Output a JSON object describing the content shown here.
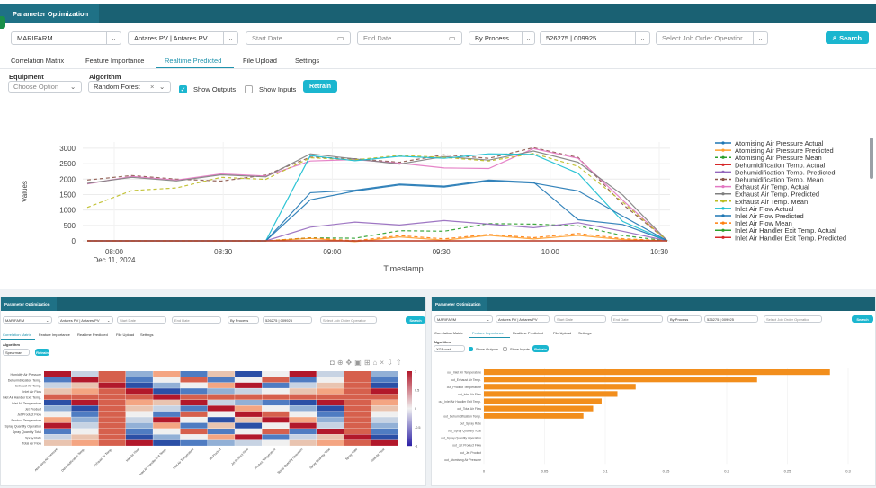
{
  "main": {
    "title": "Parameter Optimization",
    "filters": {
      "site": "MARIFARM",
      "line": "Antares PV | Antares PV",
      "start_date": "Start Date",
      "end_date": "End Date",
      "mode": "By Process",
      "order": "526275 | 009925",
      "operator": "Select Job Order Operatior",
      "search": "Search"
    },
    "tabs": [
      "Correlation Matrix",
      "Feature Importance",
      "Realtime Predicted",
      "File Upload",
      "Settings"
    ],
    "active_tab": "Realtime Predicted",
    "equipment_label": "Equipment",
    "equipment_value": "Choose Option",
    "algorithm_label": "Algorithm",
    "algorithm_value": "Random Forest",
    "show_outputs": "Show Outputs",
    "show_inputs": "Show Inputs",
    "retrain": "Retrain"
  },
  "chart_data": {
    "type": "line",
    "ylabel": "Values",
    "xlabel": "Timestamp",
    "ylim": [
      0,
      3200
    ],
    "yticks": [
      "0",
      "500",
      "1000",
      "1500",
      "2000",
      "2500",
      "3000"
    ],
    "xticks": [
      "08:00",
      "08:30",
      "09:00",
      "09:30",
      "10:00",
      "10:30"
    ],
    "xtick_sub": "Dec 11, 2024",
    "series": [
      {
        "name": "Atomising Air Pressure Actual",
        "color": "#1f77b4",
        "values": [
          0,
          0,
          0,
          0,
          0,
          1500,
          1700,
          1750,
          1800,
          1850,
          1900,
          800,
          500,
          0
        ]
      },
      {
        "name": "Atomising Air Pressure Predicted",
        "color": "#ff9f2e",
        "values": [
          0,
          0,
          0,
          0,
          0,
          50,
          60,
          70,
          80,
          90,
          90,
          60,
          40,
          0
        ]
      },
      {
        "name": "Atomising Air Pressure Mean",
        "color": "#2ca02c",
        "values": [
          0,
          0,
          0,
          0,
          0,
          100,
          200,
          300,
          400,
          500,
          600,
          400,
          200,
          0
        ]
      },
      {
        "name": "Dehumidification Temp. Actual",
        "color": "#d62728",
        "values": [
          0,
          0,
          0,
          0,
          0,
          0,
          0,
          0,
          0,
          0,
          0,
          0,
          0,
          0
        ]
      },
      {
        "name": "Dehumidification Temp. Predicted",
        "color": "#9467bd",
        "values": [
          0,
          0,
          0,
          0,
          0,
          500,
          520,
          540,
          540,
          540,
          540,
          560,
          400,
          0
        ]
      },
      {
        "name": "Dehumidification Temp. Mean",
        "color": "#8c564b",
        "values": [
          2000,
          2000,
          2000,
          2050,
          2100,
          2800,
          2600,
          2600,
          2700,
          2700,
          2900,
          2700,
          1300,
          0
        ]
      },
      {
        "name": "Exhaust Air Temp. Actual",
        "color": "#e377c2",
        "values": [
          1900,
          2000,
          2000,
          2050,
          2100,
          2700,
          2600,
          2600,
          2300,
          2400,
          2900,
          2700,
          1200,
          0
        ]
      },
      {
        "name": "Exhaust Air Temp. Predicted",
        "color": "#7f7f7f",
        "values": [
          1950,
          2000,
          2000,
          2050,
          2100,
          2700,
          2650,
          2600,
          2700,
          2700,
          2850,
          2600,
          1400,
          0
        ]
      },
      {
        "name": "Exhaust Air Temp. Mean",
        "color": "#bcbd22",
        "values": [
          1200,
          1600,
          1800,
          2000,
          2050,
          2600,
          2650,
          2650,
          2700,
          2700,
          2800,
          2500,
          1200,
          0
        ]
      },
      {
        "name": "Inlet Air Flow Actual",
        "color": "#17becf",
        "values": [
          0,
          0,
          0,
          0,
          0,
          2700,
          2650,
          2650,
          2700,
          2700,
          2800,
          2300,
          600,
          0
        ]
      },
      {
        "name": "Inlet Air Flow Predicted",
        "color": "#1f77b4",
        "values": [
          0,
          0,
          0,
          0,
          0,
          1300,
          1700,
          1750,
          1800,
          1850,
          1900,
          1500,
          800,
          0
        ]
      },
      {
        "name": "Inlet Air Flow Mean",
        "color": "#ff7f0e",
        "values": [
          0,
          0,
          0,
          0,
          0,
          100,
          120,
          140,
          150,
          150,
          160,
          150,
          100,
          0
        ]
      },
      {
        "name": "Inlet Air Handler Exit Temp. Actual",
        "color": "#2ca02c",
        "values": [
          0,
          0,
          0,
          0,
          0,
          0,
          0,
          0,
          0,
          0,
          0,
          0,
          0,
          0
        ]
      },
      {
        "name": "Inlet Air Handler Exit Temp. Predicted",
        "color": "#d62728",
        "values": [
          0,
          0,
          0,
          0,
          0,
          0,
          0,
          0,
          0,
          0,
          0,
          0,
          0,
          0
        ]
      }
    ]
  },
  "left": {
    "title": "Parameter Optimization",
    "filters": {
      "site": "MARIFARM",
      "line": "Antares PV | Antares PV",
      "start_date": "Start Date",
      "end_date": "End Date",
      "mode": "By Process",
      "order": "526275 | 009925",
      "operator": "Select Job Order Operatior",
      "search": "Search"
    },
    "tabs": [
      "Correlation Matrix",
      "Feature Importance",
      "Realtime Predicted",
      "File Upload",
      "Settings"
    ],
    "algorithm_label": "Algorithm",
    "algorithm_value": "Spearman",
    "retrain": "Retrain",
    "heatmap": {
      "rows": [
        "Humidity Air Pressure",
        "Dehumidification Temp.",
        "Exhaust Air Temp.",
        "Inlet Air Flow",
        "Inlet Air Handler Exit Temp.",
        "Inlet Air Temperature",
        "Jet Product",
        "Jet Product Flow",
        "Product Temperature",
        "Spray Quantity Operation",
        "Spray Quantity Total",
        "Spray Rate",
        "Total Air Flow"
      ],
      "cols": [
        "Atomising Air Pressure",
        "Dehumidification Temp.",
        "Exhaust Air Temp.",
        "Inlet Air Flow",
        "Inlet Air Handler Exit Temp.",
        "Inlet Air Temperature",
        "Jet Product",
        "Jet Product Flow",
        "Product Temperature",
        "Spray Quantity Operation",
        "Spray Quantity Total",
        "Spray Rate",
        "Total Air Flow"
      ],
      "scale": [
        "1",
        "0.5",
        "0",
        "-0.5",
        "-1"
      ]
    }
  },
  "right": {
    "title": "Parameter Optimization",
    "filters": {
      "site": "MARIFARM",
      "line": "Antares PV | Antares PV",
      "start_date": "Start Date",
      "end_date": "End Date",
      "mode": "By Process",
      "order": "526275 | 009925",
      "operator": "Select Job Order Operatior",
      "search": "Search"
    },
    "tabs": [
      "Correlation Matrix",
      "Feature Importance",
      "Realtime Predicted",
      "File Upload",
      "Settings"
    ],
    "algorithm_label": "Algorithm",
    "algorithm_value": "XGBoost",
    "show_outputs": "Show Outputs",
    "show_inputs": "Show Inputs",
    "retrain": "Retrain",
    "bar_color": "#f28e1c",
    "features": [
      {
        "name": "out_Inlet Air Temperature",
        "value": 0.285
      },
      {
        "name": "out_Exhaust Air Temp.",
        "value": 0.225
      },
      {
        "name": "out_Product Temperature",
        "value": 0.125
      },
      {
        "name": "out_Inlet Air Flow",
        "value": 0.11
      },
      {
        "name": "out_Inlet Air Handler Exit Temp.",
        "value": 0.097
      },
      {
        "name": "out_Total Air Flow",
        "value": 0.09
      },
      {
        "name": "out_Dehumidification Temp.",
        "value": 0.082
      },
      {
        "name": "out_Spray Rate",
        "value": 0
      },
      {
        "name": "out_Spray Quantity Total",
        "value": 0
      },
      {
        "name": "out_Spray Quantity Operation",
        "value": 0
      },
      {
        "name": "out_Jet Product Flow",
        "value": 0
      },
      {
        "name": "out_Jet Product",
        "value": 0
      },
      {
        "name": "out_Atomising Air Pressure",
        "value": 0
      }
    ],
    "xticks": [
      "0",
      "0.05",
      "0.1",
      "0.15",
      "0.2",
      "0.25",
      "0.3"
    ]
  }
}
